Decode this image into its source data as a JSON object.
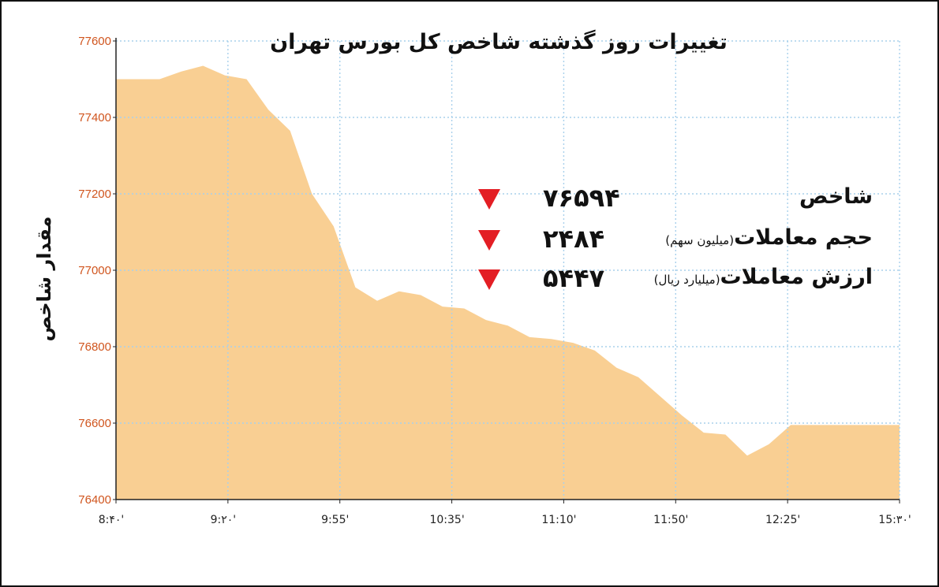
{
  "chart_data": {
    "type": "area",
    "title": "تغییرات روز گذشته شاخص کل بورس تهران",
    "ylabel": "مقدار شاخص",
    "ylim": [
      76400,
      77600
    ],
    "yticks": [
      "77600",
      "77400",
      "77200",
      "77000",
      "76800",
      "76600",
      "76400"
    ],
    "xticks": [
      "8:۴۰'",
      "9:۲۰'",
      "9:55'",
      "10:35'",
      "11:10'",
      "11:50'",
      "12:25'",
      "15:۳۰'"
    ],
    "grid": true,
    "color": "#f9cf93",
    "values": [
      77500,
      77500,
      77500,
      77520,
      77535,
      77510,
      77500,
      77420,
      77365,
      77200,
      77115,
      76955,
      76920,
      76945,
      76935,
      76905,
      76900,
      76870,
      76855,
      76825,
      76820,
      76810,
      76790,
      76745,
      76720,
      76670,
      76620,
      76575,
      76570,
      76515,
      76545,
      76595,
      76595,
      76595,
      76595,
      76595,
      76595
    ]
  },
  "stats": [
    {
      "label": "شاخص",
      "unit": "",
      "value": "۷۶۵۹۴",
      "trend": "down"
    },
    {
      "label": "حجم معاملات",
      "unit": "(میلیون سهم)",
      "value": "۲۴۸۴",
      "trend": "down"
    },
    {
      "label": "ارزش معاملات",
      "unit": "(میلیارد ریال)",
      "value": "۵۴۴۷",
      "trend": "down"
    }
  ],
  "colors": {
    "arrow": "#e31e24",
    "axis_labels": "#d0551e",
    "grid": "#a8d0ec"
  }
}
